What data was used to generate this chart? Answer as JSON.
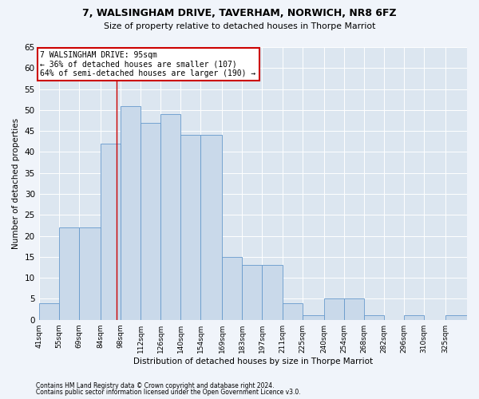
{
  "title1": "7, WALSINGHAM DRIVE, TAVERHAM, NORWICH, NR8 6FZ",
  "title2": "Size of property relative to detached houses in Thorpe Marriot",
  "xlabel": "Distribution of detached houses by size in Thorpe Marriot",
  "ylabel": "Number of detached properties",
  "footnote1": "Contains HM Land Registry data © Crown copyright and database right 2024.",
  "footnote2": "Contains public sector information licensed under the Open Government Licence v3.0.",
  "bar_color": "#c9d9ea",
  "bar_edge_color": "#6699cc",
  "bg_color": "#dce6f0",
  "fig_bg": "#f0f4fa",
  "property_sqm": 95,
  "annotation_line1": "7 WALSINGHAM DRIVE: 95sqm",
  "annotation_line2": "← 36% of detached houses are smaller (107)",
  "annotation_line3": "64% of semi-detached houses are larger (190) →",
  "bin_starts": [
    41,
    55,
    69,
    84,
    98,
    112,
    126,
    140,
    154,
    169,
    183,
    197,
    211,
    225,
    240,
    254,
    268,
    282,
    296,
    310,
    325
  ],
  "bin_labels": [
    "41sqm",
    "55sqm",
    "69sqm",
    "84sqm",
    "98sqm",
    "112sqm",
    "126sqm",
    "140sqm",
    "154sqm",
    "169sqm",
    "183sqm",
    "197sqm",
    "211sqm",
    "225sqm",
    "240sqm",
    "254sqm",
    "268sqm",
    "282sqm",
    "296sqm",
    "310sqm",
    "325sqm"
  ],
  "bar_heights": [
    4,
    22,
    22,
    42,
    51,
    47,
    49,
    44,
    44,
    15,
    13,
    13,
    4,
    1,
    5,
    5,
    1,
    0,
    1,
    0,
    1
  ],
  "ylim_max": 65,
  "ytick_step": 5,
  "red_line_color": "#cc0000",
  "ann_box_color": "#cc0000",
  "grid_color": "#ffffff"
}
